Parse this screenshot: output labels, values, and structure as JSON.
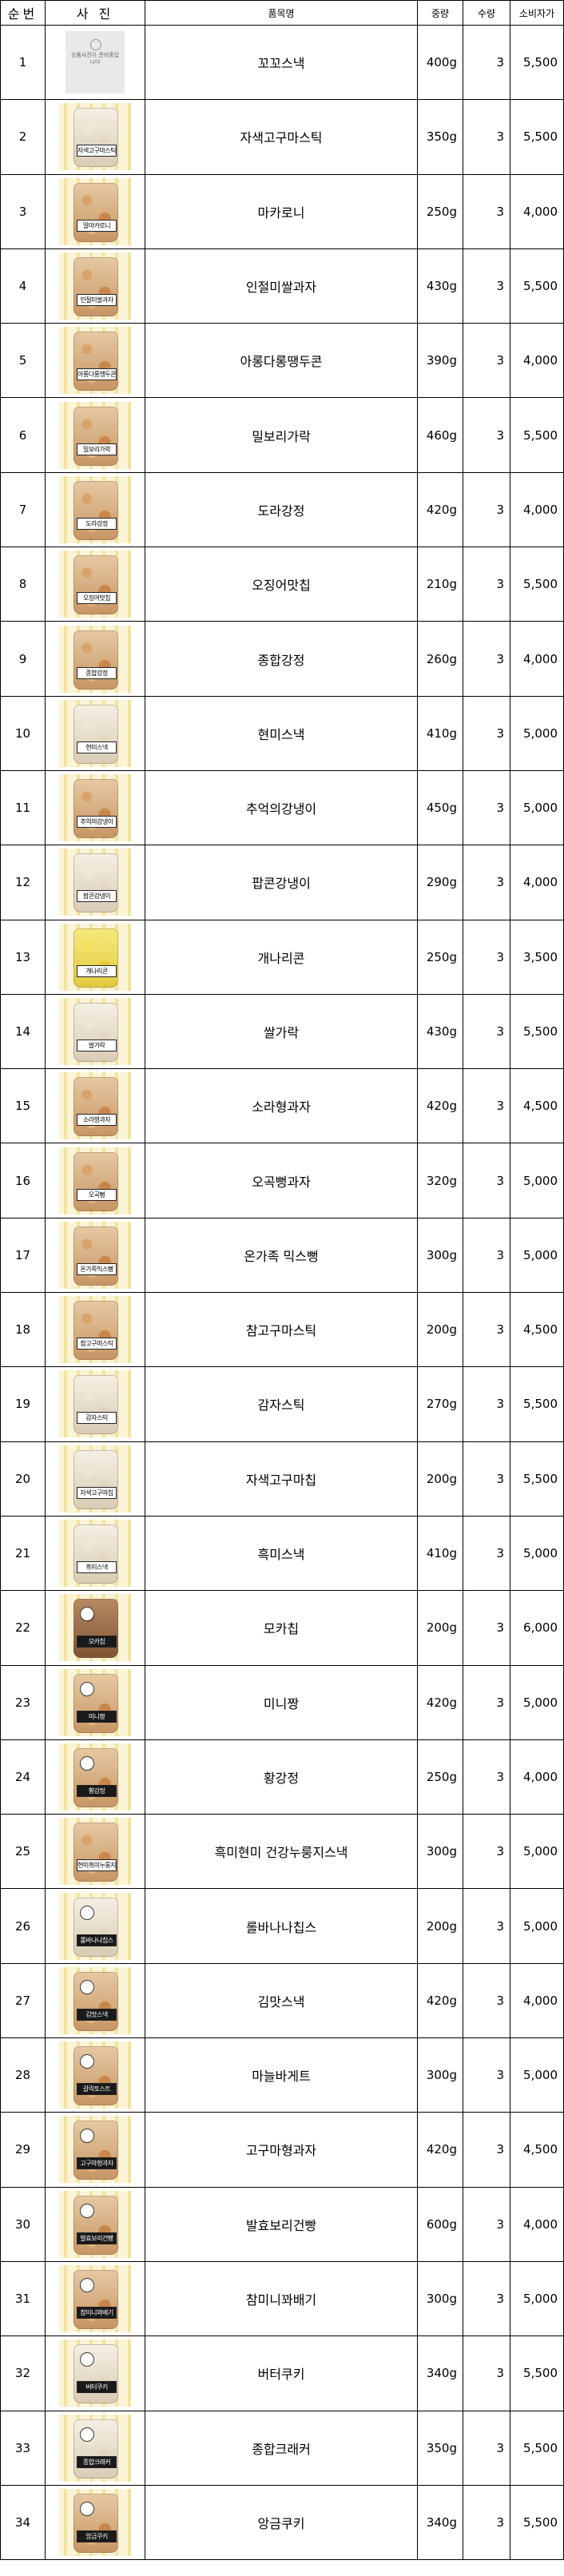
{
  "headers": {
    "no": "순번",
    "photo": "사 진",
    "name": "품목명",
    "weight": "중량",
    "qty": "수량",
    "price": "소비자가"
  },
  "placeholder_text": "상품사진이 준비중입니다",
  "rows": [
    {
      "no": "1",
      "name": "꼬꼬스낵",
      "weight": "400g",
      "qty": "3",
      "price": "5,500",
      "photo": {
        "type": "placeholder"
      }
    },
    {
      "no": "2",
      "name": "자색고구마스틱",
      "weight": "350g",
      "qty": "3",
      "price": "5,500",
      "photo": {
        "type": "bag",
        "tag": "자색고구마스틱",
        "style": "light"
      }
    },
    {
      "no": "3",
      "name": "마카로니",
      "weight": "250g",
      "qty": "3",
      "price": "4,000",
      "photo": {
        "type": "bag",
        "tag": "말마카로니",
        "style": "normal"
      }
    },
    {
      "no": "4",
      "name": "인절미쌀과자",
      "weight": "430g",
      "qty": "3",
      "price": "5,500",
      "photo": {
        "type": "bag",
        "tag": "인절미쌀과자",
        "style": "normal"
      }
    },
    {
      "no": "5",
      "name": "아롱다롱땡두콘",
      "weight": "390g",
      "qty": "3",
      "price": "4,000",
      "photo": {
        "type": "bag",
        "tag": "아롱다롱땡두콘",
        "style": "normal"
      }
    },
    {
      "no": "6",
      "name": "밀보리가락",
      "weight": "460g",
      "qty": "3",
      "price": "5,500",
      "photo": {
        "type": "bag",
        "tag": "밀보리가락",
        "style": "normal"
      }
    },
    {
      "no": "7",
      "name": "도라강정",
      "weight": "420g",
      "qty": "3",
      "price": "4,000",
      "photo": {
        "type": "bag",
        "tag": "도라강정",
        "style": "normal"
      }
    },
    {
      "no": "8",
      "name": "오징어맛칩",
      "weight": "210g",
      "qty": "3",
      "price": "5,500",
      "photo": {
        "type": "bag",
        "tag": "오징어맛칩",
        "style": "normal"
      }
    },
    {
      "no": "9",
      "name": "종합강정",
      "weight": "260g",
      "qty": "3",
      "price": "4,000",
      "photo": {
        "type": "bag",
        "tag": "종합강정",
        "style": "normal"
      }
    },
    {
      "no": "10",
      "name": "현미스낵",
      "weight": "410g",
      "qty": "3",
      "price": "5,000",
      "photo": {
        "type": "bag",
        "tag": "현미스낵",
        "style": "light"
      }
    },
    {
      "no": "11",
      "name": "추억의강냉이",
      "weight": "450g",
      "qty": "3",
      "price": "5,000",
      "photo": {
        "type": "bag",
        "tag": "추억의강냉이",
        "style": "normal"
      }
    },
    {
      "no": "12",
      "name": "팝콘강냉이",
      "weight": "290g",
      "qty": "3",
      "price": "4,000",
      "photo": {
        "type": "bag",
        "tag": "팝콘강냉이",
        "style": "light"
      }
    },
    {
      "no": "13",
      "name": "개나리콘",
      "weight": "250g",
      "qty": "3",
      "price": "3,500",
      "photo": {
        "type": "bag",
        "tag": "개나리콘",
        "style": "yellow"
      }
    },
    {
      "no": "14",
      "name": "쌀가락",
      "weight": "430g",
      "qty": "3",
      "price": "5,500",
      "photo": {
        "type": "bag",
        "tag": "쌀가락",
        "style": "light"
      }
    },
    {
      "no": "15",
      "name": "소라형과자",
      "weight": "420g",
      "qty": "3",
      "price": "4,500",
      "photo": {
        "type": "bag",
        "tag": "소라형과자",
        "style": "normal"
      }
    },
    {
      "no": "16",
      "name": "오곡뻥과자",
      "weight": "320g",
      "qty": "3",
      "price": "5,000",
      "photo": {
        "type": "bag",
        "tag": "오곡뻥",
        "style": "normal"
      }
    },
    {
      "no": "17",
      "name": "온가족 믹스뻥",
      "weight": "300g",
      "qty": "3",
      "price": "5,000",
      "photo": {
        "type": "bag",
        "tag": "온가족믹스뻥",
        "style": "normal"
      }
    },
    {
      "no": "18",
      "name": "참고구마스틱",
      "weight": "200g",
      "qty": "3",
      "price": "4,500",
      "photo": {
        "type": "bag",
        "tag": "참고구마스틱",
        "style": "normal"
      }
    },
    {
      "no": "19",
      "name": "감자스틱",
      "weight": "270g",
      "qty": "3",
      "price": "5,500",
      "photo": {
        "type": "bag",
        "tag": "감자스틱",
        "style": "light"
      }
    },
    {
      "no": "20",
      "name": "자색고구마칩",
      "weight": "200g",
      "qty": "3",
      "price": "5,500",
      "photo": {
        "type": "bag",
        "tag": "자색고구마칩",
        "style": "light"
      }
    },
    {
      "no": "21",
      "name": "흑미스낵",
      "weight": "410g",
      "qty": "3",
      "price": "5,000",
      "photo": {
        "type": "bag",
        "tag": "흑미스낵",
        "style": "light"
      }
    },
    {
      "no": "22",
      "name": "모카칩",
      "weight": "200g",
      "qty": "3",
      "price": "6,000",
      "photo": {
        "type": "bag",
        "tag": "모카칩",
        "style": "dark",
        "filled": true
      }
    },
    {
      "no": "23",
      "name": "미니짱",
      "weight": "420g",
      "qty": "3",
      "price": "5,000",
      "photo": {
        "type": "bag",
        "tag": "미니짱",
        "style": "normal",
        "filled": true
      }
    },
    {
      "no": "24",
      "name": "황강정",
      "weight": "250g",
      "qty": "3",
      "price": "4,000",
      "photo": {
        "type": "bag",
        "tag": "황강정",
        "style": "normal",
        "filled": true
      }
    },
    {
      "no": "25",
      "name": "흑미현미 건강누룽지스낵",
      "weight": "300g",
      "qty": "3",
      "price": "5,000",
      "photo": {
        "type": "bag",
        "tag": "현미흑미누룽지스낵",
        "style": "normal"
      }
    },
    {
      "no": "26",
      "name": "롤바나나칩스",
      "weight": "200g",
      "qty": "3",
      "price": "5,000",
      "photo": {
        "type": "bag",
        "tag": "롤바나나칩스",
        "style": "light",
        "filled": true
      }
    },
    {
      "no": "27",
      "name": "김맛스낵",
      "weight": "420g",
      "qty": "3",
      "price": "4,000",
      "photo": {
        "type": "bag",
        "tag": "김맛스낵",
        "style": "normal",
        "filled": true
      }
    },
    {
      "no": "28",
      "name": "마늘바게트",
      "weight": "300g",
      "qty": "3",
      "price": "5,000",
      "photo": {
        "type": "bag",
        "tag": "갈릭토스트",
        "style": "normal",
        "filled": true
      }
    },
    {
      "no": "29",
      "name": "고구마형과자",
      "weight": "420g",
      "qty": "3",
      "price": "4,500",
      "photo": {
        "type": "bag",
        "tag": "고구마형과자",
        "style": "normal",
        "filled": true
      }
    },
    {
      "no": "30",
      "name": "발효보리건빵",
      "weight": "600g",
      "qty": "3",
      "price": "4,000",
      "photo": {
        "type": "bag",
        "tag": "발효보리건빵",
        "style": "normal",
        "filled": true
      }
    },
    {
      "no": "31",
      "name": "참미니꽈배기",
      "weight": "300g",
      "qty": "3",
      "price": "5,000",
      "photo": {
        "type": "bag",
        "tag": "참미니꽈배기",
        "style": "normal",
        "filled": true
      }
    },
    {
      "no": "32",
      "name": "버터쿠키",
      "weight": "340g",
      "qty": "3",
      "price": "5,500",
      "photo": {
        "type": "bag",
        "tag": "버터쿠키",
        "style": "light",
        "filled": true
      }
    },
    {
      "no": "33",
      "name": "종합크래커",
      "weight": "350g",
      "qty": "3",
      "price": "5,500",
      "photo": {
        "type": "bag",
        "tag": "종합크래커",
        "style": "light",
        "filled": true
      }
    },
    {
      "no": "34",
      "name": "앙금쿠키",
      "weight": "340g",
      "qty": "3",
      "price": "5,500",
      "photo": {
        "type": "bag",
        "tag": "앙금쿠키",
        "style": "normal",
        "filled": true
      }
    }
  ]
}
